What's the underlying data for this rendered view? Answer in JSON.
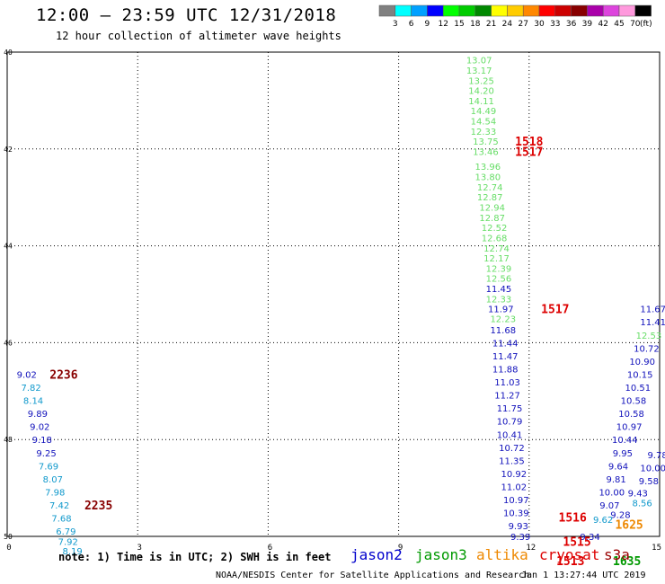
{
  "header": {
    "title": "12:00 – 23:59 UTC 12/31/2018",
    "subtitle": "12 hour collection of altimeter wave heights"
  },
  "footer": {
    "note": "note: 1) Time is in UTC; 2) SWH is in feet",
    "credit": "NOAA/NESDIS Center for Satellite Applications and Research",
    "timestamp": "Jan  1 13:27:44 UTC 2019",
    "missions": [
      {
        "name": "jason2",
        "color": "#0000cc"
      },
      {
        "name": "jason3",
        "color": "#009900"
      },
      {
        "name": "altika",
        "color": "#ee8800"
      },
      {
        "name": "cryosat",
        "color": "#dd0000"
      },
      {
        "name": "s3a",
        "color": "#990000"
      }
    ]
  },
  "legend": {
    "unit": "(ft)",
    "bins": [
      {
        "label": "3",
        "color": "#808080"
      },
      {
        "label": "6",
        "color": "#00ffff"
      },
      {
        "label": "9",
        "color": "#00a0ff"
      },
      {
        "label": "12",
        "color": "#0000ff"
      },
      {
        "label": "15",
        "color": "#00ff00"
      },
      {
        "label": "18",
        "color": "#00cc00"
      },
      {
        "label": "21",
        "color": "#008800"
      },
      {
        "label": "24",
        "color": "#ffff00"
      },
      {
        "label": "27",
        "color": "#ffcc00"
      },
      {
        "label": "30",
        "color": "#ff8800"
      },
      {
        "label": "33",
        "color": "#ff0000"
      },
      {
        "label": "36",
        "color": "#cc0000"
      },
      {
        "label": "39",
        "color": "#880000"
      },
      {
        "label": "42",
        "color": "#aa00aa"
      },
      {
        "label": "45",
        "color": "#dd44dd"
      },
      {
        "label": "70",
        "color": "#ff99dd"
      },
      {
        "label": "",
        "color": "#000000"
      }
    ]
  },
  "chart_data": {
    "type": "scatter",
    "x_ticks": [
      "0",
      "3",
      "6",
      "9",
      "12",
      "15"
    ],
    "y_ticks": [
      "40",
      "42",
      "44",
      "46",
      "48",
      "50"
    ],
    "xlim": [
      0,
      15
    ],
    "ylim": [
      40,
      50
    ],
    "grid": true,
    "points": [
      {
        "x": 10.85,
        "y": 40.16,
        "text": "13.07",
        "color": "#66dd66"
      },
      {
        "x": 10.85,
        "y": 40.37,
        "text": "13.17",
        "color": "#66dd66"
      },
      {
        "x": 10.9,
        "y": 40.58,
        "text": "13.25",
        "color": "#66dd66"
      },
      {
        "x": 10.9,
        "y": 40.79,
        "text": "14.20",
        "color": "#66dd66"
      },
      {
        "x": 10.9,
        "y": 41.0,
        "text": "14.11",
        "color": "#66dd66"
      },
      {
        "x": 10.95,
        "y": 41.21,
        "text": "14.49",
        "color": "#66dd66"
      },
      {
        "x": 10.95,
        "y": 41.42,
        "text": "14.54",
        "color": "#66dd66"
      },
      {
        "x": 10.95,
        "y": 41.63,
        "text": "12.33",
        "color": "#66dd66"
      },
      {
        "x": 11.0,
        "y": 41.84,
        "text": "13.75",
        "color": "#66dd66"
      },
      {
        "x": 11.0,
        "y": 42.05,
        "text": "13.46",
        "color": "#66dd66"
      },
      {
        "x": 11.05,
        "y": 42.36,
        "text": "13.96",
        "color": "#66dd66"
      },
      {
        "x": 11.05,
        "y": 42.57,
        "text": "13.80",
        "color": "#66dd66"
      },
      {
        "x": 11.1,
        "y": 42.78,
        "text": "12.74",
        "color": "#66dd66"
      },
      {
        "x": 11.1,
        "y": 42.99,
        "text": "12.87",
        "color": "#66dd66"
      },
      {
        "x": 11.15,
        "y": 43.2,
        "text": "12.94",
        "color": "#66dd66"
      },
      {
        "x": 11.15,
        "y": 43.41,
        "text": "12.87",
        "color": "#66dd66"
      },
      {
        "x": 11.2,
        "y": 43.62,
        "text": "12.52",
        "color": "#66dd66"
      },
      {
        "x": 11.2,
        "y": 43.83,
        "text": "12.68",
        "color": "#66dd66"
      },
      {
        "x": 11.25,
        "y": 44.04,
        "text": "12.74",
        "color": "#66dd66"
      },
      {
        "x": 11.25,
        "y": 44.25,
        "text": "12.17",
        "color": "#66dd66"
      },
      {
        "x": 11.3,
        "y": 44.46,
        "text": "12.39",
        "color": "#66dd66"
      },
      {
        "x": 11.3,
        "y": 44.67,
        "text": "12.56",
        "color": "#66dd66"
      },
      {
        "x": 11.3,
        "y": 44.88,
        "text": "11.45",
        "color": "#1111bb"
      },
      {
        "x": 11.3,
        "y": 45.09,
        "text": "12.33",
        "color": "#66dd66"
      },
      {
        "x": 11.35,
        "y": 45.3,
        "text": "11.97",
        "color": "#1111bb"
      },
      {
        "x": 11.4,
        "y": 45.5,
        "text": "12.23",
        "color": "#66dd66"
      },
      {
        "x": 11.4,
        "y": 45.73,
        "text": "11.68",
        "color": "#1111bb"
      },
      {
        "x": 11.45,
        "y": 46.0,
        "text": "11.44",
        "color": "#1111bb"
      },
      {
        "x": 11.45,
        "y": 46.27,
        "text": "11.47",
        "color": "#1111bb"
      },
      {
        "x": 11.45,
        "y": 46.54,
        "text": "11.88",
        "color": "#1111bb"
      },
      {
        "x": 11.5,
        "y": 46.81,
        "text": "11.03",
        "color": "#1111bb"
      },
      {
        "x": 11.5,
        "y": 47.08,
        "text": "11.27",
        "color": "#1111bb"
      },
      {
        "x": 11.55,
        "y": 47.35,
        "text": "11.75",
        "color": "#1111bb"
      },
      {
        "x": 11.55,
        "y": 47.62,
        "text": "10.79",
        "color": "#1111bb"
      },
      {
        "x": 11.55,
        "y": 47.89,
        "text": "10.41",
        "color": "#1111bb"
      },
      {
        "x": 11.6,
        "y": 48.16,
        "text": "10.72",
        "color": "#1111bb"
      },
      {
        "x": 11.6,
        "y": 48.43,
        "text": "11.35",
        "color": "#1111bb"
      },
      {
        "x": 11.65,
        "y": 48.7,
        "text": "10.92",
        "color": "#1111bb"
      },
      {
        "x": 11.65,
        "y": 48.97,
        "text": "11.02",
        "color": "#1111bb"
      },
      {
        "x": 11.7,
        "y": 49.24,
        "text": "10.97",
        "color": "#1111bb"
      },
      {
        "x": 11.7,
        "y": 49.51,
        "text": "10.39",
        "color": "#1111bb"
      },
      {
        "x": 11.75,
        "y": 49.78,
        "text": "9.93",
        "color": "#1111bb"
      },
      {
        "x": 11.8,
        "y": 50.0,
        "text": "9.39",
        "color": "#1111bb"
      },
      {
        "x": 0.45,
        "y": 46.65,
        "text": "9.02",
        "color": "#1111bb"
      },
      {
        "x": 0.55,
        "y": 46.92,
        "text": "7.82",
        "color": "#1199cc"
      },
      {
        "x": 0.6,
        "y": 47.19,
        "text": "8.14",
        "color": "#1199cc"
      },
      {
        "x": 0.7,
        "y": 47.46,
        "text": "9.89",
        "color": "#1111bb"
      },
      {
        "x": 0.75,
        "y": 47.73,
        "text": "9.02",
        "color": "#1111bb"
      },
      {
        "x": 0.8,
        "y": 48.0,
        "text": "9.18",
        "color": "#1111bb"
      },
      {
        "x": 0.9,
        "y": 48.27,
        "text": "9.25",
        "color": "#1111bb"
      },
      {
        "x": 0.95,
        "y": 48.54,
        "text": "7.69",
        "color": "#1199cc"
      },
      {
        "x": 1.05,
        "y": 48.81,
        "text": "8.07",
        "color": "#1199cc"
      },
      {
        "x": 1.1,
        "y": 49.08,
        "text": "7.98",
        "color": "#1199cc"
      },
      {
        "x": 1.2,
        "y": 49.35,
        "text": "7.42",
        "color": "#1199cc"
      },
      {
        "x": 1.25,
        "y": 49.62,
        "text": "7.68",
        "color": "#1199cc"
      },
      {
        "x": 1.35,
        "y": 49.89,
        "text": "6.79",
        "color": "#1199cc"
      },
      {
        "x": 1.4,
        "y": 50.1,
        "text": "7.92",
        "color": "#1199cc"
      },
      {
        "x": 1.5,
        "y": 50.3,
        "text": "8.19",
        "color": "#1199cc"
      },
      {
        "x": 14.85,
        "y": 45.3,
        "text": "11.67",
        "color": "#1111bb"
      },
      {
        "x": 14.85,
        "y": 45.57,
        "text": "11.41",
        "color": "#1111bb"
      },
      {
        "x": 14.75,
        "y": 45.84,
        "text": "12.53",
        "color": "#66dd66"
      },
      {
        "x": 14.7,
        "y": 46.11,
        "text": "10.72",
        "color": "#1111bb"
      },
      {
        "x": 14.6,
        "y": 46.38,
        "text": "10.90",
        "color": "#1111bb"
      },
      {
        "x": 14.55,
        "y": 46.65,
        "text": "10.15",
        "color": "#1111bb"
      },
      {
        "x": 14.5,
        "y": 46.92,
        "text": "10.51",
        "color": "#1111bb"
      },
      {
        "x": 14.4,
        "y": 47.19,
        "text": "10.58",
        "color": "#1111bb"
      },
      {
        "x": 14.35,
        "y": 47.46,
        "text": "10.58",
        "color": "#1111bb"
      },
      {
        "x": 14.3,
        "y": 47.73,
        "text": "10.97",
        "color": "#1111bb"
      },
      {
        "x": 14.2,
        "y": 48.0,
        "text": "10.44",
        "color": "#1111bb"
      },
      {
        "x": 14.15,
        "y": 48.27,
        "text": "9.95",
        "color": "#1111bb"
      },
      {
        "x": 14.05,
        "y": 48.54,
        "text": "9.64",
        "color": "#1111bb"
      },
      {
        "x": 14.0,
        "y": 48.81,
        "text": "9.81",
        "color": "#1111bb"
      },
      {
        "x": 13.9,
        "y": 49.08,
        "text": "10.00",
        "color": "#1111bb"
      },
      {
        "x": 13.85,
        "y": 49.35,
        "text": "9.07",
        "color": "#1111bb"
      },
      {
        "x": 14.1,
        "y": 49.55,
        "text": "9.28",
        "color": "#1111bb"
      },
      {
        "x": 14.5,
        "y": 49.1,
        "text": "9.43",
        "color": "#1111bb"
      },
      {
        "x": 14.75,
        "y": 48.85,
        "text": "9.58",
        "color": "#1111bb"
      },
      {
        "x": 14.85,
        "y": 48.58,
        "text": "10.00",
        "color": "#1111bb"
      },
      {
        "x": 14.95,
        "y": 48.31,
        "text": "9.78",
        "color": "#1111bb"
      },
      {
        "x": 14.6,
        "y": 49.3,
        "text": "8.56",
        "color": "#1199cc"
      },
      {
        "x": 13.7,
        "y": 49.65,
        "text": "9.62",
        "color": "#1199cc"
      },
      {
        "x": 13.4,
        "y": 50.0,
        "text": "9.34",
        "color": "#1111bb"
      }
    ],
    "time_labels": [
      {
        "x": 12.0,
        "y": 41.84,
        "text": "1518",
        "color": "#dd0000"
      },
      {
        "x": 12.0,
        "y": 42.05,
        "text": "1517",
        "color": "#dd0000"
      },
      {
        "x": 12.6,
        "y": 45.3,
        "text": "1517",
        "color": "#dd0000"
      },
      {
        "x": 1.3,
        "y": 46.65,
        "text": "2236",
        "color": "#880000"
      },
      {
        "x": 2.1,
        "y": 49.35,
        "text": "2235",
        "color": "#880000"
      },
      {
        "x": 13.0,
        "y": 49.6,
        "text": "1516",
        "color": "#dd0000"
      },
      {
        "x": 13.1,
        "y": 50.1,
        "text": "1515",
        "color": "#dd0000"
      },
      {
        "x": 12.95,
        "y": 50.5,
        "text": "1513",
        "color": "#dd0000"
      },
      {
        "x": 14.3,
        "y": 49.75,
        "text": "1625",
        "color": "#ee8800"
      },
      {
        "x": 14.25,
        "y": 50.5,
        "text": "1635",
        "color": "#009900"
      }
    ]
  }
}
